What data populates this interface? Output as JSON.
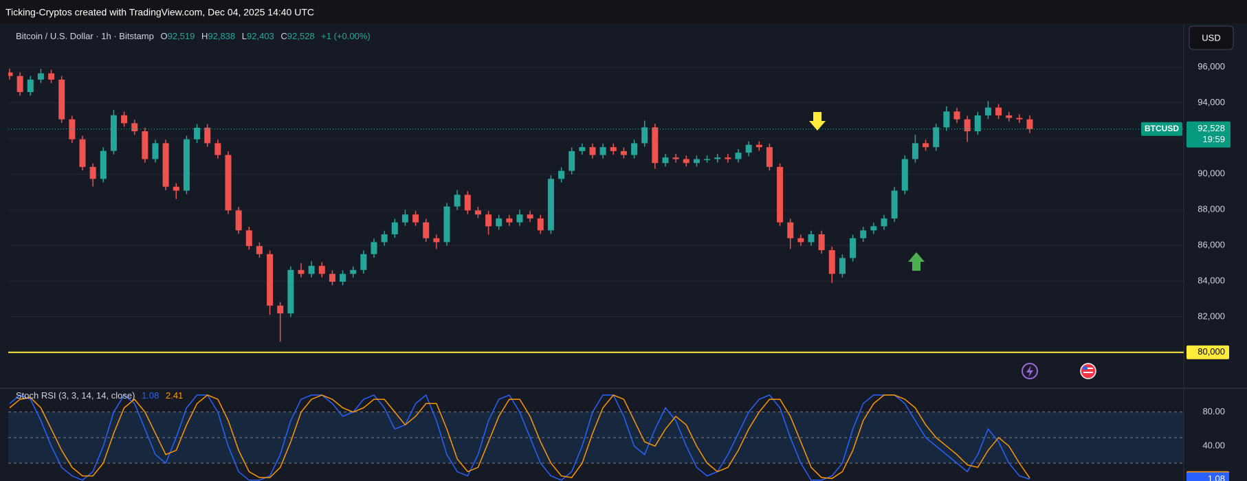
{
  "header": {
    "title": "Ticking-Cryptos created with TradingView.com, Dec 04, 2025 14:40 UTC"
  },
  "toolbar": {
    "currency": "USD"
  },
  "chart_data": [
    {
      "type": "candlestick",
      "legend": {
        "symbol": "Bitcoin / U.S. Dollar · 1h · Bitstamp",
        "fields": [
          {
            "key": "O",
            "value": 92519,
            "label": "92,519"
          },
          {
            "key": "H",
            "value": 92838,
            "label": "92,838"
          },
          {
            "key": "L",
            "value": 92403,
            "label": "92,403"
          },
          {
            "key": "C",
            "value": 92528,
            "label": "92,528"
          }
        ],
        "change": "+1 (+0.00%)"
      },
      "symbol_tag": "BTCUSD",
      "last_price": {
        "value": 92528,
        "label": "92,528"
      },
      "countdown": "19:59",
      "up_color": "#26a69a",
      "down_color": "#ef5350",
      "series": [
        {
          "name": "BTCUSD",
          "open": [
            95700,
            95500,
            94600,
            95300,
            95650,
            95300,
            93070,
            91950,
            90400,
            89730,
            91300,
            93300,
            92850,
            92400,
            90840,
            91730,
            89290,
            89070,
            91950,
            92600,
            91730,
            91070,
            87960,
            86840,
            85960,
            85510,
            82620,
            82180,
            84620,
            84400,
            84850,
            84400,
            83960,
            84400,
            84620,
            85510,
            86180,
            86620,
            87290,
            87730,
            87290,
            86400,
            86180,
            88180,
            88840,
            87960,
            87730,
            87070,
            87510,
            87290,
            87730,
            87510,
            86840,
            89730,
            90180,
            91290,
            91510,
            91070,
            91510,
            91290,
            91070,
            91730,
            92620,
            90620,
            90930,
            90840,
            90620,
            90840,
            90840,
            90930,
            90840,
            91200,
            91640,
            91510,
            90400,
            87290,
            86400,
            86180,
            86620,
            85730,
            84400,
            85290,
            86400,
            86840,
            87070,
            87510,
            89070,
            90840,
            91730,
            91510,
            92620,
            93510,
            93070,
            92400,
            93290,
            93730,
            93290,
            93150,
            93070
          ],
          "high": [
            95900,
            95700,
            95500,
            95900,
            95850,
            95500,
            93270,
            92150,
            90600,
            91500,
            93600,
            93500,
            93050,
            92600,
            91930,
            91930,
            89490,
            92150,
            92800,
            92800,
            91930,
            91270,
            88160,
            87040,
            86160,
            85710,
            82820,
            84820,
            85000,
            85100,
            85050,
            84600,
            84600,
            84820,
            85710,
            86380,
            86820,
            87490,
            88000,
            87930,
            87490,
            86600,
            88380,
            89100,
            89040,
            88160,
            87930,
            87710,
            87710,
            88000,
            87930,
            87710,
            89930,
            90380,
            91490,
            91710,
            91710,
            91710,
            91710,
            91490,
            91930,
            93000,
            92820,
            91130,
            91130,
            91040,
            91040,
            91040,
            91130,
            91130,
            91400,
            91840,
            91840,
            91710,
            90600,
            87490,
            86600,
            86820,
            86820,
            85930,
            85490,
            86600,
            87040,
            87270,
            87710,
            89270,
            91040,
            92200,
            91930,
            92820,
            93800,
            93710,
            93270,
            93490,
            94100,
            93930,
            93490,
            93350,
            93300
          ],
          "low": [
            95300,
            94400,
            94400,
            95100,
            95100,
            92870,
            91750,
            90200,
            89300,
            89530,
            91100,
            92650,
            92200,
            90640,
            90640,
            89090,
            88600,
            88870,
            91750,
            91530,
            90870,
            87760,
            86640,
            85760,
            85310,
            82100,
            80600,
            81980,
            84200,
            84200,
            84200,
            83760,
            83760,
            84200,
            84420,
            85310,
            85980,
            86420,
            87090,
            87090,
            86200,
            85800,
            85980,
            87980,
            87760,
            87530,
            86600,
            86870,
            87090,
            87090,
            87310,
            86640,
            86640,
            89530,
            89980,
            91090,
            90870,
            90870,
            91090,
            90870,
            90870,
            91530,
            90300,
            90420,
            90640,
            90420,
            90420,
            90640,
            90640,
            90640,
            90640,
            91000,
            91310,
            90200,
            87090,
            85800,
            85980,
            85980,
            85530,
            83900,
            84200,
            85090,
            86200,
            86640,
            86870,
            87310,
            88870,
            90640,
            91310,
            91310,
            92420,
            92870,
            91800,
            92200,
            93090,
            93090,
            92950,
            92870,
            92300
          ],
          "close": [
            95500,
            94600,
            95300,
            95650,
            95300,
            93070,
            91950,
            90400,
            89730,
            91300,
            93300,
            92850,
            92400,
            90840,
            91730,
            89290,
            89070,
            91950,
            92600,
            91730,
            91070,
            87960,
            86840,
            85960,
            85510,
            82620,
            82180,
            84620,
            84400,
            84850,
            84400,
            83960,
            84400,
            84620,
            85510,
            86180,
            86620,
            87290,
            87730,
            87290,
            86400,
            86180,
            88180,
            88840,
            87960,
            87730,
            87070,
            87510,
            87290,
            87730,
            87510,
            86840,
            89730,
            90180,
            91290,
            91510,
            91070,
            91510,
            91290,
            91070,
            91730,
            92620,
            90620,
            90930,
            90840,
            90620,
            90840,
            90840,
            90930,
            90840,
            91200,
            91640,
            91510,
            90400,
            87290,
            86400,
            86180,
            86620,
            85730,
            84400,
            85290,
            86400,
            86840,
            87070,
            87510,
            89070,
            90840,
            91730,
            91510,
            92620,
            93510,
            93070,
            92400,
            93290,
            93730,
            93290,
            93150,
            93070,
            92528
          ]
        }
      ],
      "hline": {
        "value": 80000,
        "label": "80,000",
        "color": "#ffeb3b"
      },
      "ylim": [
        78100,
        98300
      ],
      "yticks": [
        {
          "value": 82000,
          "label": "82,000"
        },
        {
          "value": 84000,
          "label": "84,000"
        },
        {
          "value": 86000,
          "label": "86,000"
        },
        {
          "value": 88000,
          "label": "88,000"
        },
        {
          "value": 90000,
          "label": "90,000"
        },
        {
          "value": 92000,
          "label": "92,000"
        },
        {
          "value": 94000,
          "label": "94,000"
        },
        {
          "value": 96000,
          "label": "96,000"
        }
      ],
      "grid": true
    },
    {
      "type": "line",
      "title": "Stoch RSI (3, 3, 14, 14, close)",
      "series": [
        {
          "name": "K",
          "color": "#2962ff",
          "values": [
            90,
            100,
            95,
            70,
            40,
            15,
            5,
            0,
            10,
            40,
            80,
            100,
            90,
            60,
            30,
            20,
            50,
            85,
            100,
            100,
            80,
            40,
            10,
            0,
            0,
            5,
            30,
            70,
            95,
            100,
            100,
            90,
            75,
            80,
            95,
            100,
            85,
            60,
            65,
            90,
            100,
            70,
            30,
            10,
            5,
            30,
            70,
            95,
            100,
            80,
            50,
            20,
            5,
            0,
            10,
            40,
            80,
            100,
            100,
            75,
            40,
            30,
            60,
            85,
            70,
            40,
            15,
            5,
            10,
            30,
            55,
            80,
            95,
            100,
            85,
            50,
            20,
            0,
            0,
            5,
            20,
            60,
            90,
            100,
            100,
            100,
            90,
            70,
            50,
            40,
            30,
            20,
            10,
            30,
            60,
            45,
            20,
            5,
            1.08
          ]
        },
        {
          "name": "D",
          "color": "#ff9800",
          "values": [
            85,
            95,
            97,
            85,
            60,
            35,
            15,
            5,
            5,
            20,
            55,
            85,
            95,
            80,
            55,
            30,
            35,
            65,
            90,
            100,
            95,
            70,
            35,
            10,
            3,
            3,
            15,
            45,
            80,
            95,
            100,
            95,
            85,
            80,
            85,
            95,
            95,
            80,
            65,
            75,
            90,
            90,
            60,
            25,
            10,
            15,
            45,
            75,
            95,
            95,
            75,
            45,
            20,
            5,
            3,
            20,
            55,
            85,
            100,
            95,
            70,
            45,
            40,
            60,
            75,
            65,
            40,
            20,
            10,
            15,
            35,
            60,
            80,
            95,
            95,
            75,
            45,
            15,
            3,
            2,
            10,
            35,
            70,
            90,
            100,
            100,
            95,
            85,
            65,
            50,
            40,
            30,
            18,
            15,
            35,
            50,
            40,
            20,
            2.41
          ]
        }
      ],
      "bands": {
        "upper": 80,
        "middle": 50,
        "lower": 20
      },
      "ylim": [
        -1,
        108
      ],
      "yticks": [
        {
          "value": 40,
          "label": "40.00"
        },
        {
          "value": 80,
          "label": "80.00"
        }
      ]
    }
  ]
}
